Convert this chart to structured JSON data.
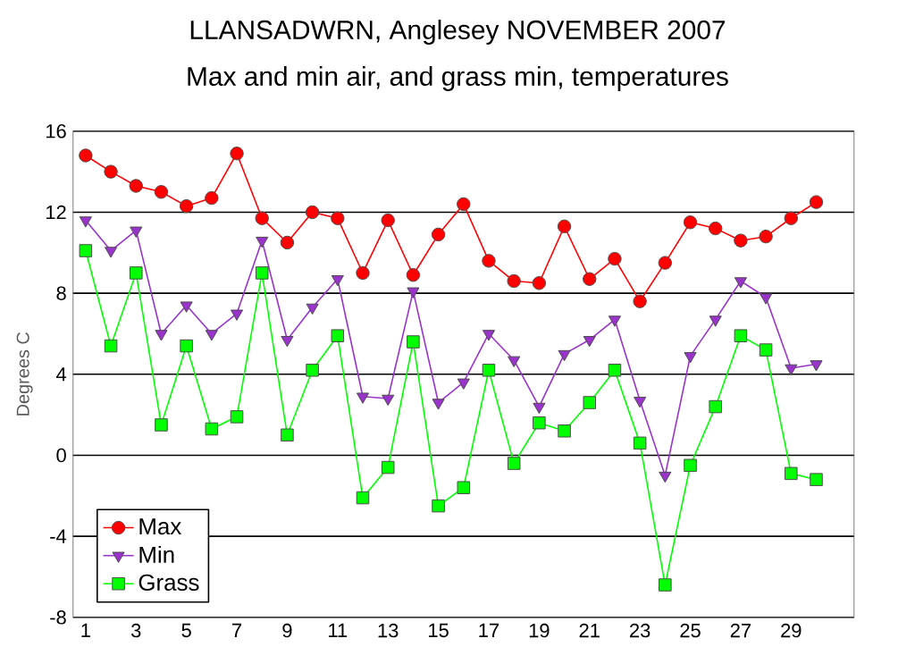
{
  "chart_data": {
    "type": "line",
    "title": "LLANSADWRN, Anglesey NOVEMBER 2007",
    "subtitle": "Max and min air, and grass min, temperatures",
    "ylabel": "Degrees C",
    "x": [
      1,
      2,
      3,
      4,
      5,
      6,
      7,
      8,
      9,
      10,
      11,
      12,
      13,
      14,
      15,
      16,
      17,
      18,
      19,
      20,
      21,
      22,
      23,
      24,
      25,
      26,
      27,
      28,
      29,
      30
    ],
    "xlim": [
      0.5,
      31.5
    ],
    "xticks": [
      1,
      3,
      5,
      7,
      9,
      11,
      13,
      15,
      17,
      19,
      21,
      23,
      25,
      27,
      29
    ],
    "ylim": [
      -8,
      16
    ],
    "yticks": [
      -8,
      -4,
      0,
      4,
      8,
      12,
      16
    ],
    "grid": "y",
    "legend": "bottom left",
    "series": [
      {
        "name": "Max",
        "color": "#ff0000",
        "marker": "circle",
        "values": [
          14.8,
          14.0,
          13.3,
          13.0,
          12.3,
          12.7,
          14.9,
          11.7,
          10.5,
          12.0,
          11.7,
          9.0,
          11.6,
          8.9,
          10.9,
          12.4,
          9.6,
          8.6,
          8.5,
          11.3,
          8.7,
          9.7,
          7.6,
          9.5,
          11.5,
          11.2,
          10.6,
          10.8,
          11.7,
          12.5
        ]
      },
      {
        "name": "Min",
        "color": "#9933cc",
        "marker": "triangle",
        "values": [
          11.6,
          10.1,
          11.1,
          6.0,
          7.4,
          6.0,
          7.0,
          10.6,
          5.7,
          7.3,
          8.7,
          2.9,
          2.8,
          8.1,
          2.6,
          3.6,
          6.0,
          4.7,
          2.4,
          5.0,
          5.7,
          6.7,
          2.7,
          -1.0,
          4.9,
          6.7,
          8.6,
          7.8,
          4.3,
          4.5
        ]
      },
      {
        "name": "Grass",
        "color": "#00ff00",
        "marker": "square",
        "values": [
          10.1,
          5.4,
          9.0,
          1.5,
          5.4,
          1.3,
          1.9,
          9.0,
          1.0,
          4.2,
          5.9,
          -2.1,
          -0.6,
          5.6,
          -2.5,
          -1.6,
          4.2,
          -0.4,
          1.6,
          1.2,
          2.6,
          4.2,
          0.6,
          -6.4,
          -0.5,
          2.4,
          5.9,
          5.2,
          -0.9,
          -1.2
        ]
      }
    ]
  }
}
